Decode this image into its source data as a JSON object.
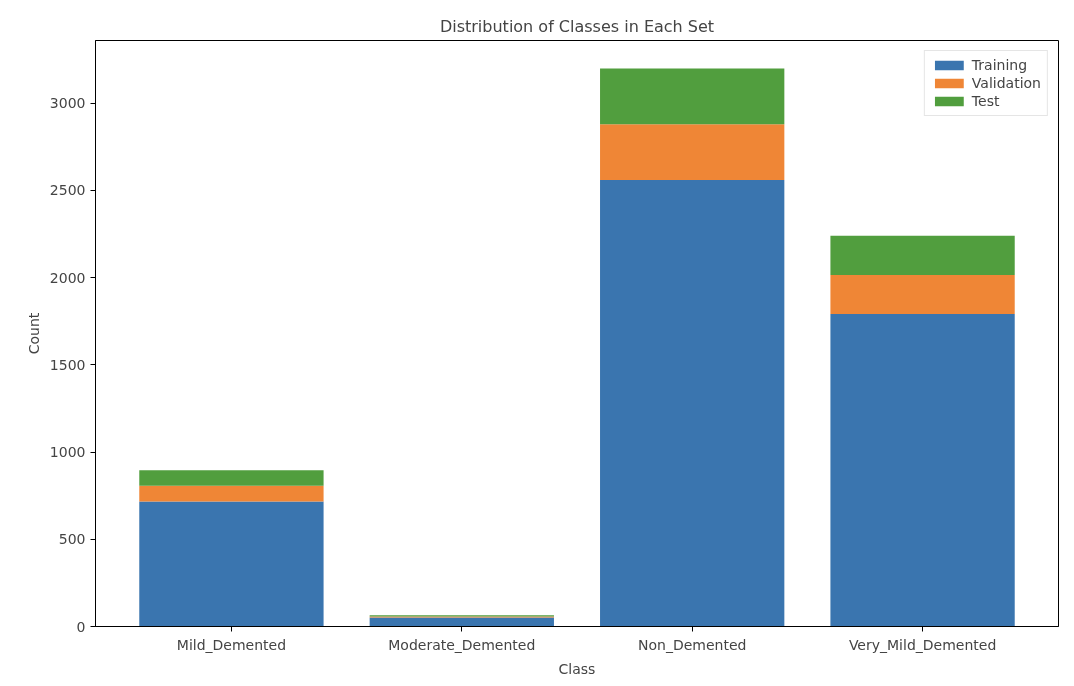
{
  "chart_data": {
    "type": "bar",
    "title": "Distribution of Classes in Each Set",
    "xlabel": "Class",
    "ylabel": "Count",
    "categories": [
      "Mild_Demented",
      "Moderate_Demented",
      "Non_Demented",
      "Very_Mild_Demented"
    ],
    "stacked": true,
    "series": [
      {
        "name": "Training",
        "color": "#3a75af",
        "values": [
          717,
          51,
          2560,
          1792
        ]
      },
      {
        "name": "Validation",
        "color": "#ef8636",
        "values": [
          90,
          6,
          320,
          224
        ]
      },
      {
        "name": "Test",
        "color": "#519e3e",
        "values": [
          89,
          7,
          320,
          224
        ]
      }
    ],
    "ylim": [
      0,
      3360
    ],
    "yticks": [
      0,
      500,
      1000,
      1500,
      2000,
      2500,
      3000
    ],
    "grid": false,
    "legend": "top right"
  }
}
